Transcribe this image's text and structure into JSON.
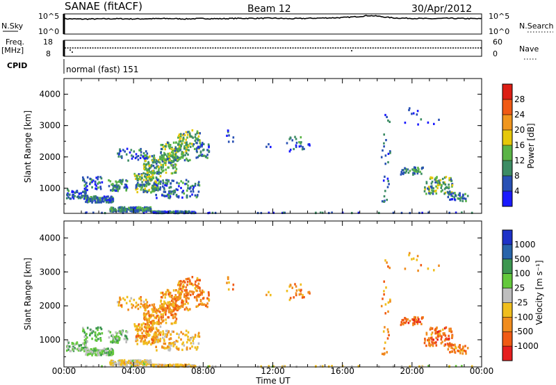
{
  "header": {
    "station": "SANAE (fitACF)",
    "beam": "Beam 12",
    "date": "30/Apr/2012"
  },
  "chart_data": [
    {
      "type": "line",
      "panel": "noise",
      "left_label": "N.Sky",
      "right_label": "N.Search",
      "left_ticks": [
        "10^5",
        "10^0"
      ],
      "right_ticks": [
        "10^5",
        "10^0"
      ],
      "x_hours": [
        0,
        1,
        2,
        3,
        4,
        5,
        6,
        7,
        8,
        9,
        10,
        11,
        12,
        13,
        14,
        15,
        16,
        17,
        17.5,
        18,
        18.5,
        19,
        20,
        21,
        22,
        23,
        24
      ],
      "y_level": [
        0.78,
        0.76,
        0.77,
        0.78,
        0.77,
        0.78,
        0.79,
        0.77,
        0.79,
        0.78,
        0.8,
        0.8,
        0.81,
        0.78,
        0.8,
        0.82,
        0.84,
        0.9,
        0.95,
        0.92,
        0.86,
        0.82,
        0.8,
        0.78,
        0.8,
        0.79,
        0.78
      ]
    },
    {
      "type": "scatter",
      "panel": "frequency",
      "left_label": "Freq.",
      "left_unit": "[MHz]",
      "left_ticks": [
        "18",
        "8"
      ],
      "right_label": "Nave",
      "right_ticks": [
        "60",
        "0"
      ],
      "freq_mhz": 12
    },
    {
      "type": "text",
      "panel": "cpid",
      "label": "CPID",
      "text": "normal (fast) 151"
    },
    {
      "type": "heatmap",
      "panel": "power",
      "ylabel": "Slant Range [km]",
      "yticks": [
        "1000",
        "2000",
        "3000",
        "4000"
      ],
      "ylim": [
        200,
        4500
      ],
      "xlim": [
        0,
        24
      ],
      "colorbar_label": "Power [dB]",
      "colorbar_ticks": [
        "4",
        "8",
        "12",
        "16",
        "20",
        "24",
        "28"
      ],
      "colors": [
        "#1a1aff",
        "#2850b4",
        "#3c8c64",
        "#5ab446",
        "#e6c80a",
        "#f0961e",
        "#f05a14",
        "#dc1e14"
      ]
    },
    {
      "type": "heatmap",
      "panel": "velocity",
      "ylabel": "Slant Range [km]",
      "yticks": [
        "1000",
        "2000",
        "3000",
        "4000"
      ],
      "ylim": [
        200,
        4500
      ],
      "xlim": [
        0,
        24
      ],
      "xticks": [
        "00:00",
        "04:00",
        "08:00",
        "12:00",
        "16:00",
        "20:00",
        "00:00"
      ],
      "xlabel": "Time UT",
      "colorbar_label": "Velocity [m s⁻¹]",
      "colorbar_ticks": [
        "1000",
        "500",
        "100",
        "25",
        "-25",
        "-100",
        "-500",
        "-1000"
      ],
      "colors": [
        "#1e32c8",
        "#2864aa",
        "#3c9650",
        "#64c83c",
        "#bebebe",
        "#f0be1e",
        "#f08c1e",
        "#f05a14",
        "#e61e1e"
      ]
    }
  ]
}
